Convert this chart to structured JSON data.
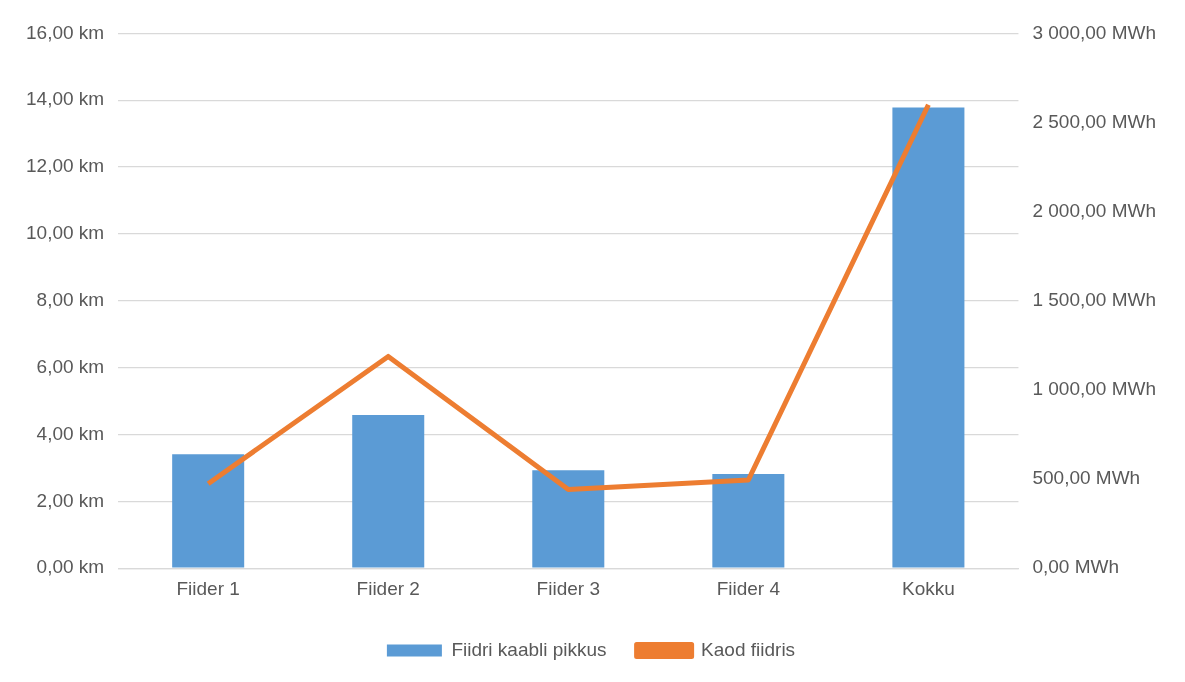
{
  "chart_data": {
    "type": "bar",
    "categories": [
      "Fiider 1",
      "Fiider 2",
      "Fiider 3",
      "Fiider 4",
      "Kokku"
    ],
    "series": [
      {
        "name": "Fiidri kaabli pikkus",
        "color": "#5b9bd5",
        "values": [
          3.41,
          4.58,
          2.93,
          2.82,
          13.78
        ]
      },
      {
        "name": "Kaod fiidris",
        "type": "line",
        "axis": "y2",
        "color": "#ed7d31",
        "values": [
          474,
          1188,
          442,
          495,
          2600
        ]
      }
    ],
    "ylim": [
      0,
      16
    ],
    "yticks": [
      {
        "value": 0,
        "label": "0,00 km"
      },
      {
        "value": 2,
        "label": "2,00 km"
      },
      {
        "value": 4,
        "label": "4,00 km"
      },
      {
        "value": 6,
        "label": "6,00 km"
      },
      {
        "value": 8,
        "label": "8,00 km"
      },
      {
        "value": 10,
        "label": "10,00 km"
      },
      {
        "value": 12,
        "label": "12,00 km"
      },
      {
        "value": 14,
        "label": "14,00 km"
      },
      {
        "value": 16,
        "label": "16,00 km"
      }
    ],
    "y2lim": [
      0,
      3000
    ],
    "y2ticks": [
      {
        "value": 0,
        "label": "0,00 MWh"
      },
      {
        "value": 500,
        "label": "500,00 MWh"
      },
      {
        "value": 1000,
        "label": "1 000,00 MWh"
      },
      {
        "value": 1500,
        "label": "1 500,00 MWh"
      },
      {
        "value": 2000,
        "label": "2 000,00 MWh"
      },
      {
        "value": 2500,
        "label": "2 500,00 MWh"
      },
      {
        "value": 3000,
        "label": "3 000,00 MWh"
      }
    ],
    "grid": "y",
    "legend": "bottom",
    "marker": "none"
  }
}
